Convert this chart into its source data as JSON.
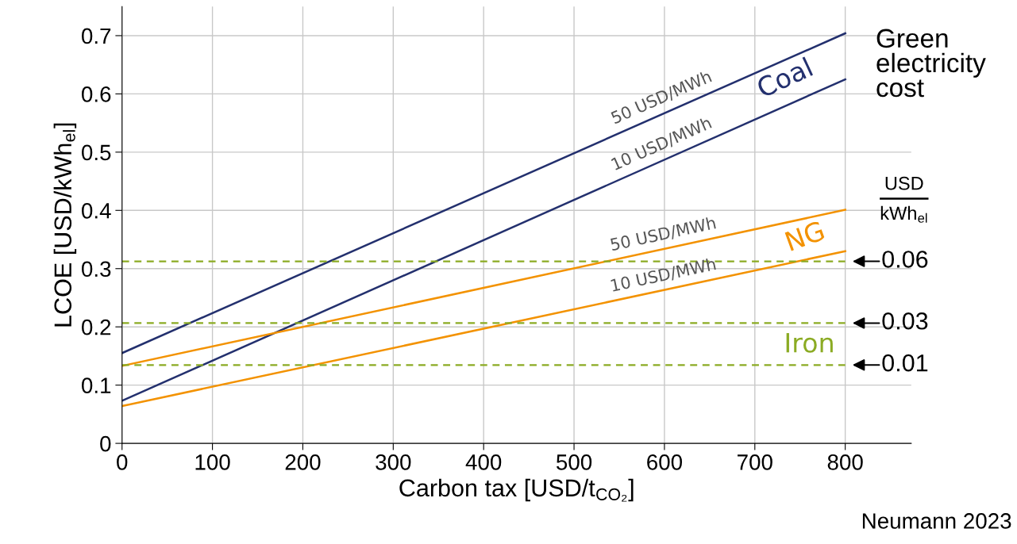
{
  "chart_data": {
    "type": "line",
    "xlabel": "Carbon tax [USD/t$_{CO₂}$]",
    "ylabel": "LCOE [USD/kWh$_{el}$]",
    "x": [
      0,
      800
    ],
    "series": [
      {
        "name": "50 USD/MWh",
        "color": "#23306e",
        "values": [
          0.155,
          0.704
        ]
      },
      {
        "name": "10 USD/MWh",
        "color": "#23306e",
        "values": [
          0.073,
          0.625
        ]
      },
      {
        "name": "50 USD/MWh",
        "color": "#f39200",
        "values": [
          0.133,
          0.401
        ]
      },
      {
        "name": "10 USD/MWh",
        "color": "#f39200",
        "values": [
          0.064,
          0.33
        ]
      }
    ],
    "xlim": [
      0,
      873
    ],
    "ylim": [
      0,
      0.75
    ],
    "xticks": [
      0,
      100,
      200,
      300,
      400,
      500,
      600,
      700,
      800
    ],
    "yticks": [
      0,
      0.1,
      0.2,
      0.3,
      0.4,
      0.5,
      0.6,
      0.7
    ],
    "grid": true,
    "line_style": "solid",
    "ref_lines": [
      {
        "axis": "y",
        "value": 0.3125,
        "color": "#8bab23",
        "line_style": "dashed"
      },
      {
        "axis": "y",
        "value": 0.2065,
        "color": "#8bab23",
        "line_style": "dashed"
      },
      {
        "axis": "y",
        "value": 0.1345,
        "color": "#8bab23",
        "line_style": "dashed"
      }
    ],
    "annotations": [
      "Coal",
      "NG",
      "Iron",
      "0.06",
      "0.03",
      "0.01",
      "Green\nelectricity\ncost",
      "USD",
      "kWh$_{el}$",
      "Neumann 2023"
    ]
  }
}
